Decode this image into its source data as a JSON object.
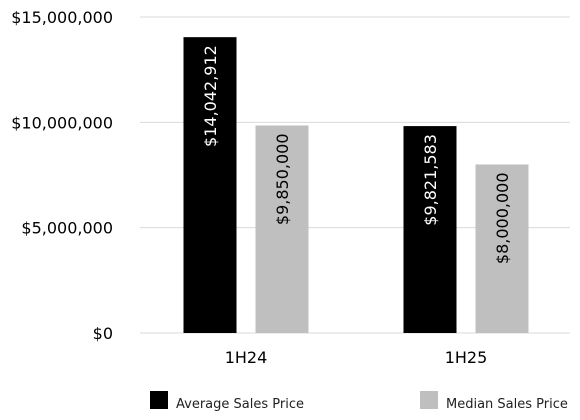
{
  "chart_data": {
    "type": "bar",
    "categories": [
      "1H24",
      "1H25"
    ],
    "series": [
      {
        "name": "Average Sales Price",
        "color": "#000000",
        "label_color": "#ffffff",
        "values": [
          14042912,
          9821583
        ],
        "labels": [
          "$14,042,912",
          "$9,821,583"
        ]
      },
      {
        "name": "Median Sales Price",
        "color": "#bfbfbf",
        "label_color": "#000000",
        "values": [
          9850000,
          8000000
        ],
        "labels": [
          "$9,850,000",
          "$8,000,000"
        ]
      }
    ],
    "ylim": [
      0,
      15000000
    ],
    "yticks": [
      0,
      5000000,
      10000000,
      15000000
    ],
    "ytick_labels": [
      "$0",
      "$5,000,000",
      "$10,000,000",
      "$15,000,000"
    ],
    "grid": true,
    "grid_color": "#d9d9d9",
    "legend_position": "bottom",
    "title": "",
    "xlabel": "",
    "ylabel": ""
  }
}
